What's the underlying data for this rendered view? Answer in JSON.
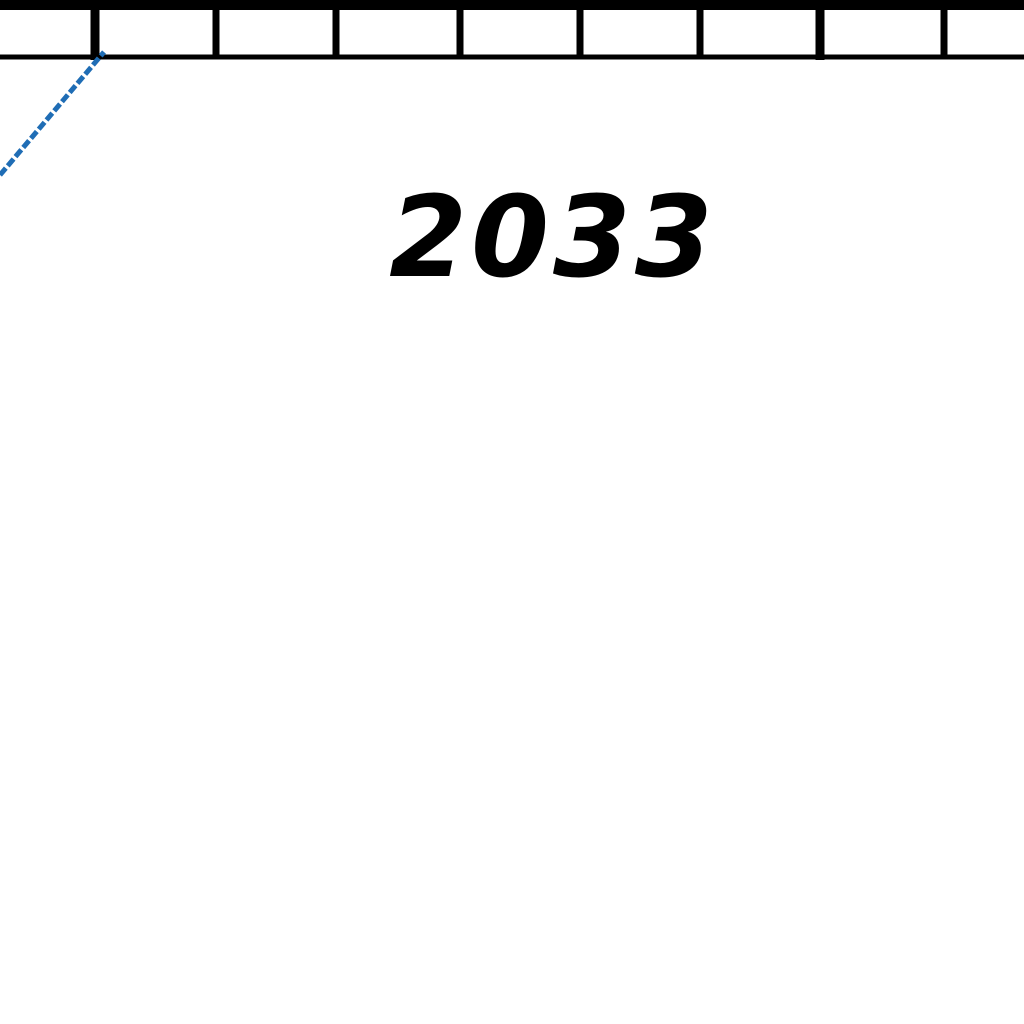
{
  "chart_data": {
    "type": "line",
    "x_tick_labels": [
      "2033"
    ],
    "series": [
      {
        "color": "#1f6db5",
        "points": [
          [
            0.0,
            0.0
          ],
          [
            1.0,
            1.0
          ]
        ]
      }
    ],
    "grid": false,
    "colors": {
      "axis": "#000000",
      "series": "#1f6db5",
      "background": "#ffffff"
    }
  }
}
